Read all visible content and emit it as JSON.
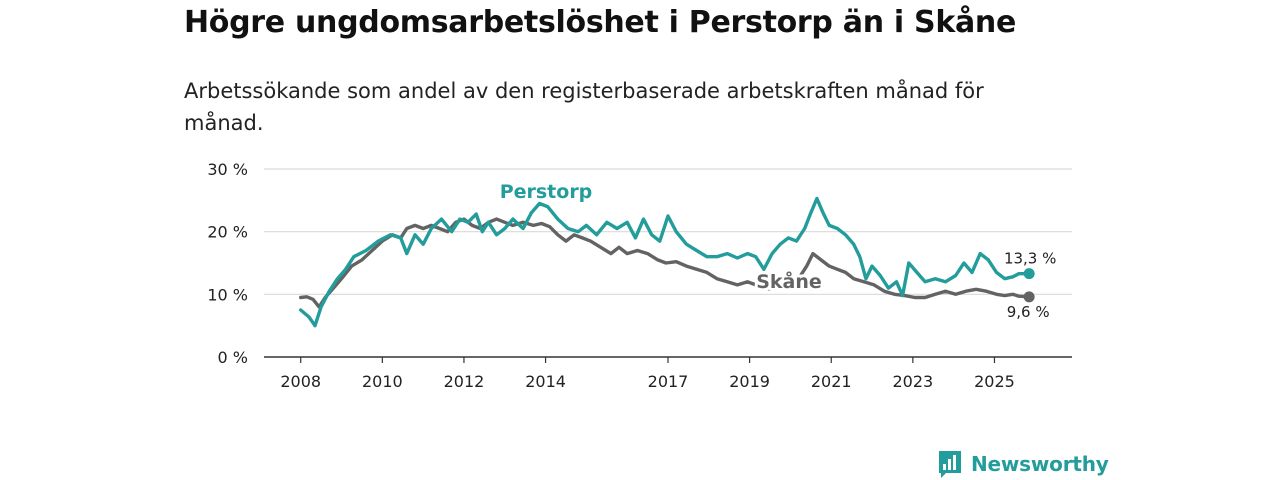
{
  "brand": {
    "name": "Newsworthy",
    "color": "#229d9b"
  },
  "chart_data": {
    "type": "line",
    "title": "Högre ungdomsarbetslöshet i Perstorp än i Skåne",
    "subtitle": "Arbetssökande som andel av den registerbaserade arbetskraften månad för månad.",
    "xlabel": "",
    "ylabel": "",
    "x_ticks": [
      {
        "value": 2008,
        "label": "2008"
      },
      {
        "value": 2010,
        "label": "2010"
      },
      {
        "value": 2012,
        "label": "2012"
      },
      {
        "value": 2014,
        "label": "2014"
      },
      {
        "value": 2017,
        "label": "2017"
      },
      {
        "value": 2019,
        "label": "2019"
      },
      {
        "value": 2021,
        "label": "2021"
      },
      {
        "value": 2023,
        "label": "2023"
      },
      {
        "value": 2025,
        "label": "2025"
      }
    ],
    "y_ticks": [
      {
        "value": 0,
        "label": "0 %"
      },
      {
        "value": 10,
        "label": "10 %"
      },
      {
        "value": 20,
        "label": "20 %"
      },
      {
        "value": 30,
        "label": "30 %"
      }
    ],
    "xlim": [
      2007.1,
      2026.9
    ],
    "ylim": [
      0,
      30
    ],
    "grid": true,
    "legend": "inline labels",
    "series": [
      {
        "name": "Perstorp",
        "label": "Perstorp",
        "color": "#229d9b",
        "end_label": "13,3 %",
        "points": [
          [
            2008.0,
            7.5
          ],
          [
            2008.2,
            6.4
          ],
          [
            2008.35,
            5.0
          ],
          [
            2008.5,
            8.0
          ],
          [
            2008.7,
            10.5
          ],
          [
            2008.9,
            12.5
          ],
          [
            2009.1,
            14.0
          ],
          [
            2009.3,
            16.0
          ],
          [
            2009.6,
            17.0
          ],
          [
            2009.9,
            18.5
          ],
          [
            2010.2,
            19.5
          ],
          [
            2010.45,
            19.0
          ],
          [
            2010.6,
            16.5
          ],
          [
            2010.8,
            19.5
          ],
          [
            2011.0,
            18.0
          ],
          [
            2011.2,
            20.5
          ],
          [
            2011.45,
            22.0
          ],
          [
            2011.7,
            20.0
          ],
          [
            2011.9,
            22.0
          ],
          [
            2012.1,
            21.5
          ],
          [
            2012.3,
            22.8
          ],
          [
            2012.45,
            20.0
          ],
          [
            2012.6,
            21.5
          ],
          [
            2012.8,
            19.5
          ],
          [
            2013.0,
            20.5
          ],
          [
            2013.2,
            22.0
          ],
          [
            2013.45,
            20.5
          ],
          [
            2013.65,
            23.0
          ],
          [
            2013.85,
            24.5
          ],
          [
            2014.05,
            24.0
          ],
          [
            2014.3,
            22.0
          ],
          [
            2014.55,
            20.5
          ],
          [
            2014.8,
            20.0
          ],
          [
            2015.0,
            21.0
          ],
          [
            2015.25,
            19.5
          ],
          [
            2015.5,
            21.5
          ],
          [
            2015.75,
            20.5
          ],
          [
            2016.0,
            21.5
          ],
          [
            2016.2,
            19.0
          ],
          [
            2016.4,
            22.0
          ],
          [
            2016.6,
            19.5
          ],
          [
            2016.8,
            18.5
          ],
          [
            2017.0,
            22.5
          ],
          [
            2017.2,
            20.0
          ],
          [
            2017.45,
            18.0
          ],
          [
            2017.7,
            17.0
          ],
          [
            2017.95,
            16.0
          ],
          [
            2018.2,
            16.0
          ],
          [
            2018.45,
            16.5
          ],
          [
            2018.7,
            15.8
          ],
          [
            2018.95,
            16.5
          ],
          [
            2019.15,
            16.0
          ],
          [
            2019.35,
            14.0
          ],
          [
            2019.55,
            16.5
          ],
          [
            2019.75,
            18.0
          ],
          [
            2019.95,
            19.0
          ],
          [
            2020.15,
            18.5
          ],
          [
            2020.35,
            20.5
          ],
          [
            2020.5,
            23.0
          ],
          [
            2020.65,
            25.3
          ],
          [
            2020.8,
            23.0
          ],
          [
            2020.95,
            21.0
          ],
          [
            2021.15,
            20.5
          ],
          [
            2021.35,
            19.5
          ],
          [
            2021.55,
            18.0
          ],
          [
            2021.7,
            16.0
          ],
          [
            2021.85,
            12.5
          ],
          [
            2022.0,
            14.5
          ],
          [
            2022.2,
            13.0
          ],
          [
            2022.4,
            11.0
          ],
          [
            2022.6,
            12.0
          ],
          [
            2022.75,
            9.8
          ],
          [
            2022.9,
            15.0
          ],
          [
            2023.1,
            13.5
          ],
          [
            2023.3,
            12.0
          ],
          [
            2023.55,
            12.5
          ],
          [
            2023.8,
            12.0
          ],
          [
            2024.05,
            13.0
          ],
          [
            2024.25,
            15.0
          ],
          [
            2024.45,
            13.5
          ],
          [
            2024.65,
            16.5
          ],
          [
            2024.85,
            15.5
          ],
          [
            2025.05,
            13.5
          ],
          [
            2025.25,
            12.5
          ],
          [
            2025.45,
            12.8
          ],
          [
            2025.6,
            13.3
          ],
          [
            2025.85,
            13.3
          ]
        ]
      },
      {
        "name": "Skåne",
        "label": "Skåne",
        "color": "#636363",
        "end_label": "9,6 %",
        "points": [
          [
            2008.0,
            9.5
          ],
          [
            2008.15,
            9.6
          ],
          [
            2008.3,
            9.2
          ],
          [
            2008.45,
            8.0
          ],
          [
            2008.6,
            9.5
          ],
          [
            2008.8,
            11.0
          ],
          [
            2009.0,
            12.5
          ],
          [
            2009.25,
            14.5
          ],
          [
            2009.5,
            15.5
          ],
          [
            2009.75,
            17.0
          ],
          [
            2010.0,
            18.5
          ],
          [
            2010.25,
            19.5
          ],
          [
            2010.45,
            19.0
          ],
          [
            2010.6,
            20.5
          ],
          [
            2010.8,
            21.0
          ],
          [
            2011.0,
            20.5
          ],
          [
            2011.2,
            21.0
          ],
          [
            2011.4,
            20.5
          ],
          [
            2011.6,
            20.0
          ],
          [
            2011.8,
            21.5
          ],
          [
            2012.0,
            22.0
          ],
          [
            2012.2,
            21.0
          ],
          [
            2012.4,
            20.5
          ],
          [
            2012.6,
            21.5
          ],
          [
            2012.8,
            22.0
          ],
          [
            2013.0,
            21.5
          ],
          [
            2013.2,
            21.0
          ],
          [
            2013.45,
            21.5
          ],
          [
            2013.7,
            21.0
          ],
          [
            2013.9,
            21.3
          ],
          [
            2014.1,
            20.8
          ],
          [
            2014.3,
            19.5
          ],
          [
            2014.5,
            18.5
          ],
          [
            2014.7,
            19.5
          ],
          [
            2014.9,
            19.0
          ],
          [
            2015.1,
            18.5
          ],
          [
            2015.35,
            17.5
          ],
          [
            2015.6,
            16.5
          ],
          [
            2015.8,
            17.5
          ],
          [
            2016.0,
            16.5
          ],
          [
            2016.25,
            17.0
          ],
          [
            2016.5,
            16.5
          ],
          [
            2016.75,
            15.5
          ],
          [
            2016.95,
            15.0
          ],
          [
            2017.2,
            15.2
          ],
          [
            2017.45,
            14.5
          ],
          [
            2017.7,
            14.0
          ],
          [
            2017.95,
            13.5
          ],
          [
            2018.2,
            12.5
          ],
          [
            2018.45,
            12.0
          ],
          [
            2018.7,
            11.5
          ],
          [
            2018.95,
            12.0
          ],
          [
            2019.15,
            11.5
          ],
          [
            2019.35,
            11.0
          ],
          [
            2019.55,
            10.8
          ],
          [
            2019.75,
            11.5
          ],
          [
            2020.0,
            12.0
          ],
          [
            2020.2,
            12.5
          ],
          [
            2020.4,
            14.5
          ],
          [
            2020.55,
            16.5
          ],
          [
            2020.75,
            15.5
          ],
          [
            2020.95,
            14.5
          ],
          [
            2021.15,
            14.0
          ],
          [
            2021.35,
            13.5
          ],
          [
            2021.55,
            12.5
          ],
          [
            2021.8,
            12.0
          ],
          [
            2022.05,
            11.5
          ],
          [
            2022.3,
            10.5
          ],
          [
            2022.55,
            10.0
          ],
          [
            2022.8,
            9.8
          ],
          [
            2023.05,
            9.5
          ],
          [
            2023.3,
            9.5
          ],
          [
            2023.55,
            10.0
          ],
          [
            2023.8,
            10.5
          ],
          [
            2024.05,
            10.0
          ],
          [
            2024.3,
            10.5
          ],
          [
            2024.55,
            10.8
          ],
          [
            2024.8,
            10.5
          ],
          [
            2025.05,
            10.0
          ],
          [
            2025.25,
            9.8
          ],
          [
            2025.45,
            10.0
          ],
          [
            2025.6,
            9.7
          ],
          [
            2025.85,
            9.6
          ]
        ]
      }
    ]
  }
}
